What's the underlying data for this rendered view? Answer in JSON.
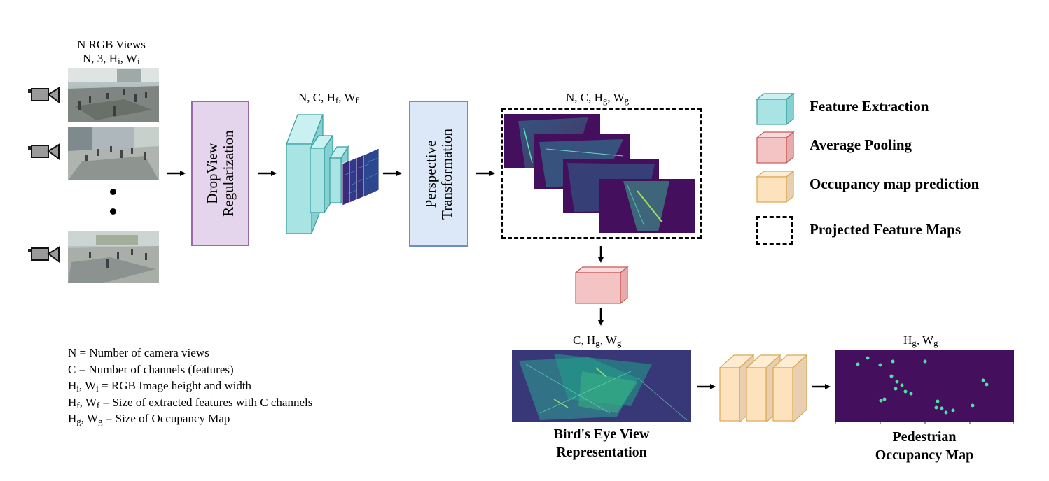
{
  "input": {
    "title": "N RGB Views",
    "dims": {
      "base": "N, 3, H",
      "sub1": "i",
      "mid": ", W",
      "sub2": "i"
    }
  },
  "dropview": {
    "line1": "DropView",
    "line2": "Regularization"
  },
  "features_dims": {
    "base": "N, C, H",
    "sub1": "f",
    "mid": ", W",
    "sub2": "f"
  },
  "perspective": {
    "line1": "Perspective",
    "line2": "Transformation"
  },
  "projected_dims": {
    "base": "N, C, H",
    "sub1": "g",
    "mid": ", W",
    "sub2": "g"
  },
  "bev_dims": {
    "base": "C, H",
    "sub1": "g",
    "mid": ", W",
    "sub2": "g"
  },
  "occ_dims": {
    "base": "H",
    "sub1": "g",
    "mid": ", W",
    "sub2": "g"
  },
  "bev_caption": {
    "line1": "Bird's Eye View",
    "line2": "Representation"
  },
  "occ_caption": {
    "line1": "Pedestrian",
    "line2": "Occupancy Map"
  },
  "legend": [
    {
      "label": "Feature Extraction",
      "color": "#a8e4e4",
      "icon": "cube-teal-icon"
    },
    {
      "label": "Average Pooling",
      "color": "#f4c4c4",
      "icon": "cube-red-icon"
    },
    {
      "label": "Occupancy map prediction",
      "color": "#fde2be",
      "icon": "cube-orange-icon"
    },
    {
      "label": "Projected Feature Maps",
      "color": "#000000",
      "icon": "dashed-box-icon"
    }
  ],
  "definitions": {
    "n": "N = Number of camera views",
    "c": "C = Number of channels (features)",
    "hi": {
      "a": "H",
      "a_sub": "i",
      "b": ", W",
      "b_sub": "i",
      "rest": " = RGB Image height and width"
    },
    "hf": {
      "a": "H",
      "a_sub": "f",
      "b": ", W",
      "b_sub": "f",
      "rest": " = Size of extracted features with C channels"
    },
    "hg": {
      "a": "H",
      "a_sub": "g",
      "b": ", W",
      "b_sub": "g",
      "rest": " = Size of Occupancy Map"
    }
  },
  "colors": {
    "dropview_fill": "#e5d5ec",
    "dropview_border": "#9a6aa8",
    "perspective_fill": "#dce8f8",
    "perspective_border": "#6f8fc0",
    "feature_map": "#440f5c",
    "feature_bright": "#3bd3a8"
  }
}
